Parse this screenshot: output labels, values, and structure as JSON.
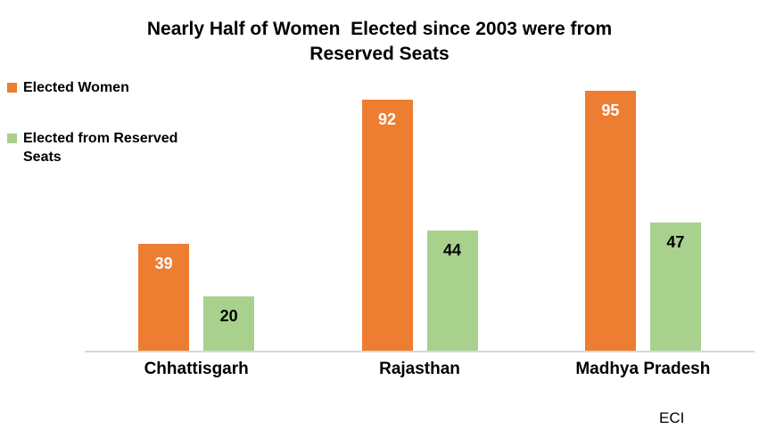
{
  "title": {
    "line1": "Nearly Half of Women  Elected since 2003 were from",
    "line2": "Reserved Seats"
  },
  "legend": [
    {
      "label": "Elected Women",
      "color": "#ED7D31"
    },
    {
      "label": "Elected from Reserved Seats",
      "color": "#A9D18E"
    }
  ],
  "source_note": "ECI",
  "chart_data": {
    "type": "bar",
    "title": "Nearly Half of Women Elected since 2003 were from Reserved Seats",
    "categories": [
      "Chhattisgarh",
      "Rajasthan",
      "Madhya Pradesh"
    ],
    "series": [
      {
        "name": "Elected Women",
        "color": "#ED7D31",
        "label_color": "#FFFFFF",
        "values": [
          39,
          92,
          95
        ]
      },
      {
        "name": "Elected from Reserved Seats",
        "color": "#A9D18E",
        "label_color": "#000000",
        "values": [
          20,
          44,
          47
        ]
      }
    ],
    "xlabel": "",
    "ylabel": "",
    "ylim": [
      0,
      100
    ],
    "grid": false,
    "y_axis_visible": false,
    "legend_position": "top-left",
    "data_labels": "inside-end",
    "axis_line_color": "#D9D9D9",
    "background_color": "#FFFFFF"
  }
}
